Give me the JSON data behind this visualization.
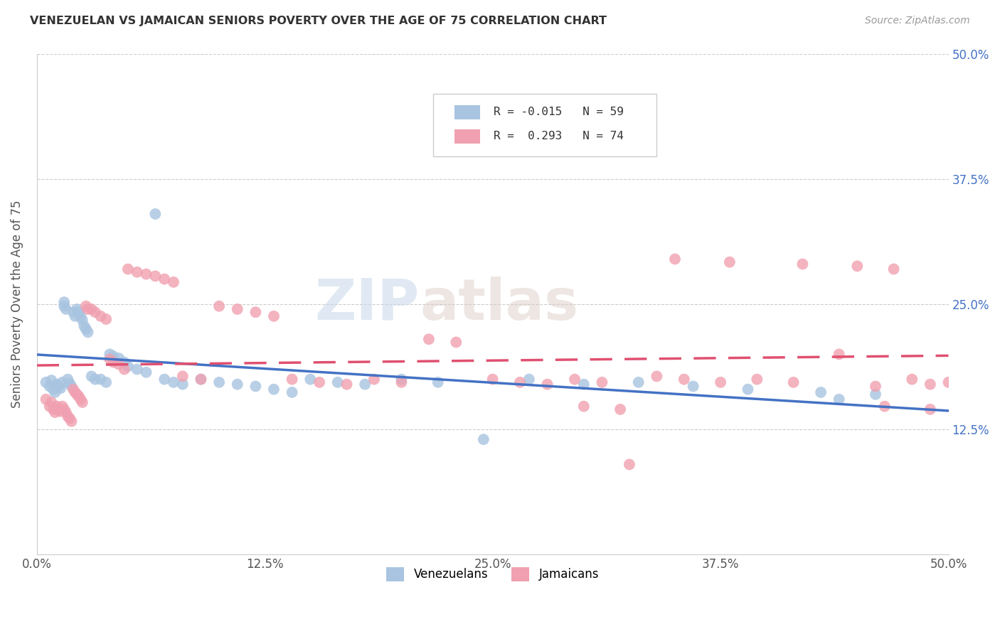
{
  "title": "VENEZUELAN VS JAMAICAN SENIORS POVERTY OVER THE AGE OF 75 CORRELATION CHART",
  "source": "Source: ZipAtlas.com",
  "ylabel": "Seniors Poverty Over the Age of 75",
  "xlim": [
    0.0,
    0.5
  ],
  "ylim": [
    0.0,
    0.5
  ],
  "xtick_labels": [
    "0.0%",
    "12.5%",
    "25.0%",
    "37.5%",
    "50.0%"
  ],
  "xtick_vals": [
    0.0,
    0.125,
    0.25,
    0.375,
    0.5
  ],
  "ytick_vals": [
    0.125,
    0.25,
    0.375,
    0.5
  ],
  "ytick_labels_right": [
    "12.5%",
    "25.0%",
    "37.5%",
    "50.0%"
  ],
  "venezuelan_color": "#a8c4e0",
  "jamaican_color": "#f0a0b0",
  "venezuelan_R": -0.015,
  "venezuelan_N": 59,
  "jamaican_R": 0.293,
  "jamaican_N": 74,
  "trend_color_ven": "#4472c4",
  "trend_color_jam": "#e05070",
  "watermark_zip": "ZIP",
  "watermark_atlas": "atlas",
  "ven_x": [
    0.005,
    0.007,
    0.008,
    0.009,
    0.01,
    0.011,
    0.012,
    0.013,
    0.014,
    0.015,
    0.015,
    0.016,
    0.017,
    0.018,
    0.019,
    0.02,
    0.021,
    0.022,
    0.023,
    0.024,
    0.025,
    0.026,
    0.027,
    0.028,
    0.03,
    0.032,
    0.035,
    0.038,
    0.04,
    0.042,
    0.045,
    0.048,
    0.05,
    0.055,
    0.06,
    0.065,
    0.07,
    0.075,
    0.08,
    0.09,
    0.1,
    0.11,
    0.12,
    0.13,
    0.14,
    0.15,
    0.165,
    0.18,
    0.2,
    0.22,
    0.245,
    0.27,
    0.3,
    0.33,
    0.36,
    0.39,
    0.43,
    0.46,
    0.44
  ],
  "ven_y": [
    0.172,
    0.168,
    0.174,
    0.165,
    0.162,
    0.17,
    0.168,
    0.166,
    0.172,
    0.252,
    0.248,
    0.245,
    0.175,
    0.171,
    0.168,
    0.242,
    0.238,
    0.245,
    0.242,
    0.238,
    0.234,
    0.228,
    0.225,
    0.222,
    0.178,
    0.175,
    0.175,
    0.172,
    0.2,
    0.198,
    0.196,
    0.192,
    0.188,
    0.185,
    0.182,
    0.34,
    0.175,
    0.172,
    0.17,
    0.175,
    0.172,
    0.17,
    0.168,
    0.165,
    0.162,
    0.175,
    0.172,
    0.17,
    0.175,
    0.172,
    0.115,
    0.175,
    0.17,
    0.172,
    0.168,
    0.165,
    0.162,
    0.16,
    0.155
  ],
  "jam_x": [
    0.005,
    0.007,
    0.008,
    0.009,
    0.01,
    0.011,
    0.012,
    0.013,
    0.014,
    0.015,
    0.016,
    0.017,
    0.018,
    0.019,
    0.02,
    0.021,
    0.022,
    0.023,
    0.024,
    0.025,
    0.027,
    0.028,
    0.03,
    0.032,
    0.035,
    0.038,
    0.04,
    0.042,
    0.045,
    0.048,
    0.05,
    0.055,
    0.06,
    0.065,
    0.07,
    0.075,
    0.08,
    0.09,
    0.1,
    0.11,
    0.12,
    0.13,
    0.14,
    0.155,
    0.17,
    0.185,
    0.2,
    0.215,
    0.23,
    0.25,
    0.265,
    0.28,
    0.295,
    0.31,
    0.325,
    0.34,
    0.355,
    0.375,
    0.395,
    0.415,
    0.44,
    0.465,
    0.49,
    0.3,
    0.32,
    0.35,
    0.38,
    0.42,
    0.45,
    0.47,
    0.48,
    0.5,
    0.49,
    0.46
  ],
  "jam_y": [
    0.155,
    0.148,
    0.152,
    0.145,
    0.142,
    0.148,
    0.145,
    0.143,
    0.148,
    0.145,
    0.142,
    0.138,
    0.136,
    0.133,
    0.165,
    0.162,
    0.16,
    0.158,
    0.155,
    0.152,
    0.248,
    0.245,
    0.245,
    0.242,
    0.238,
    0.235,
    0.195,
    0.192,
    0.19,
    0.185,
    0.285,
    0.282,
    0.28,
    0.278,
    0.275,
    0.272,
    0.178,
    0.175,
    0.248,
    0.245,
    0.242,
    0.238,
    0.175,
    0.172,
    0.17,
    0.175,
    0.172,
    0.215,
    0.212,
    0.175,
    0.172,
    0.17,
    0.175,
    0.172,
    0.09,
    0.178,
    0.175,
    0.172,
    0.175,
    0.172,
    0.2,
    0.148,
    0.145,
    0.148,
    0.145,
    0.295,
    0.292,
    0.29,
    0.288,
    0.285,
    0.175,
    0.172,
    0.17,
    0.168
  ]
}
